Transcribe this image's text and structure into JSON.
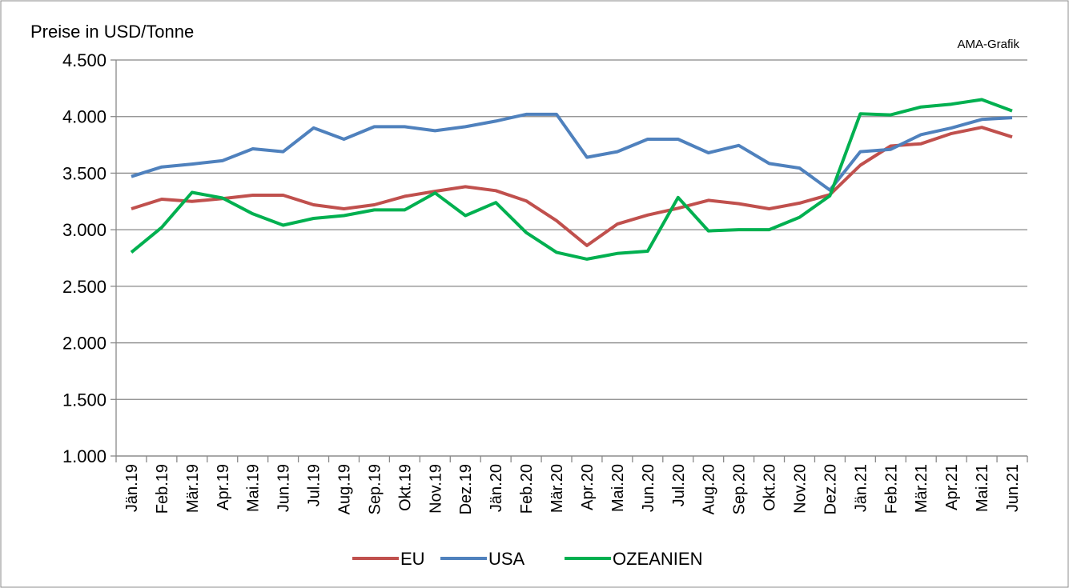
{
  "chart_data": {
    "type": "line",
    "y_label": "Preise in USD/Tonne",
    "annotation": "AMA-Grafik",
    "categories": [
      "Jän.19",
      "Feb.19",
      "Mär.19",
      "Apr.19",
      "Mai.19",
      "Jun.19",
      "Jul.19",
      "Aug.19",
      "Sep.19",
      "Okt.19",
      "Nov.19",
      "Dez.19",
      "Jän.20",
      "Feb.20",
      "Mär.20",
      "Apr.20",
      "Mai.20",
      "Jun.20",
      "Jul.20",
      "Aug.20",
      "Sep.20",
      "Okt.20",
      "Nov.20",
      "Dez.20",
      "Jän.21",
      "Feb.21",
      "Mär.21",
      "Apr.21",
      "Mai.21",
      "Jun.21"
    ],
    "series": [
      {
        "name": "EU",
        "color": "#c0504d",
        "values": [
          3185,
          3270,
          3250,
          3275,
          3305,
          3305,
          3220,
          3185,
          3220,
          3295,
          3340,
          3380,
          3345,
          3255,
          3080,
          2860,
          3050,
          3130,
          3190,
          3260,
          3230,
          3185,
          3235,
          3310,
          3570,
          3740,
          3760,
          3850,
          3905,
          3820
        ]
      },
      {
        "name": "USA",
        "color": "#4f81bd",
        "values": [
          3470,
          3555,
          3580,
          3610,
          3715,
          3690,
          3900,
          3800,
          3910,
          3910,
          3875,
          3910,
          3960,
          4020,
          4020,
          3640,
          3690,
          3800,
          3800,
          3680,
          3745,
          3585,
          3545,
          3350,
          3690,
          3710,
          3840,
          3900,
          3975,
          3990
        ]
      },
      {
        "name": "OZEANIEN",
        "color": "#00b050",
        "values": [
          2800,
          3020,
          3330,
          3280,
          3140,
          3040,
          3100,
          3125,
          3175,
          3175,
          3325,
          3125,
          3240,
          2975,
          2800,
          2740,
          2790,
          2810,
          3285,
          2990,
          3000,
          3000,
          3110,
          3300,
          4025,
          4015,
          4085,
          4110,
          4150,
          4050
        ]
      }
    ],
    "ylim": [
      1000,
      4500
    ],
    "yticks": [
      {
        "value": 1000,
        "label": "1.000"
      },
      {
        "value": 1500,
        "label": "1.500"
      },
      {
        "value": 2000,
        "label": "2.000"
      },
      {
        "value": 2500,
        "label": "2.500"
      },
      {
        "value": 3000,
        "label": "3.000"
      },
      {
        "value": 3500,
        "label": "3.500"
      },
      {
        "value": 4000,
        "label": "4.000"
      },
      {
        "value": 4500,
        "label": "4.500"
      }
    ],
    "grid": true,
    "legend": "bottom"
  }
}
